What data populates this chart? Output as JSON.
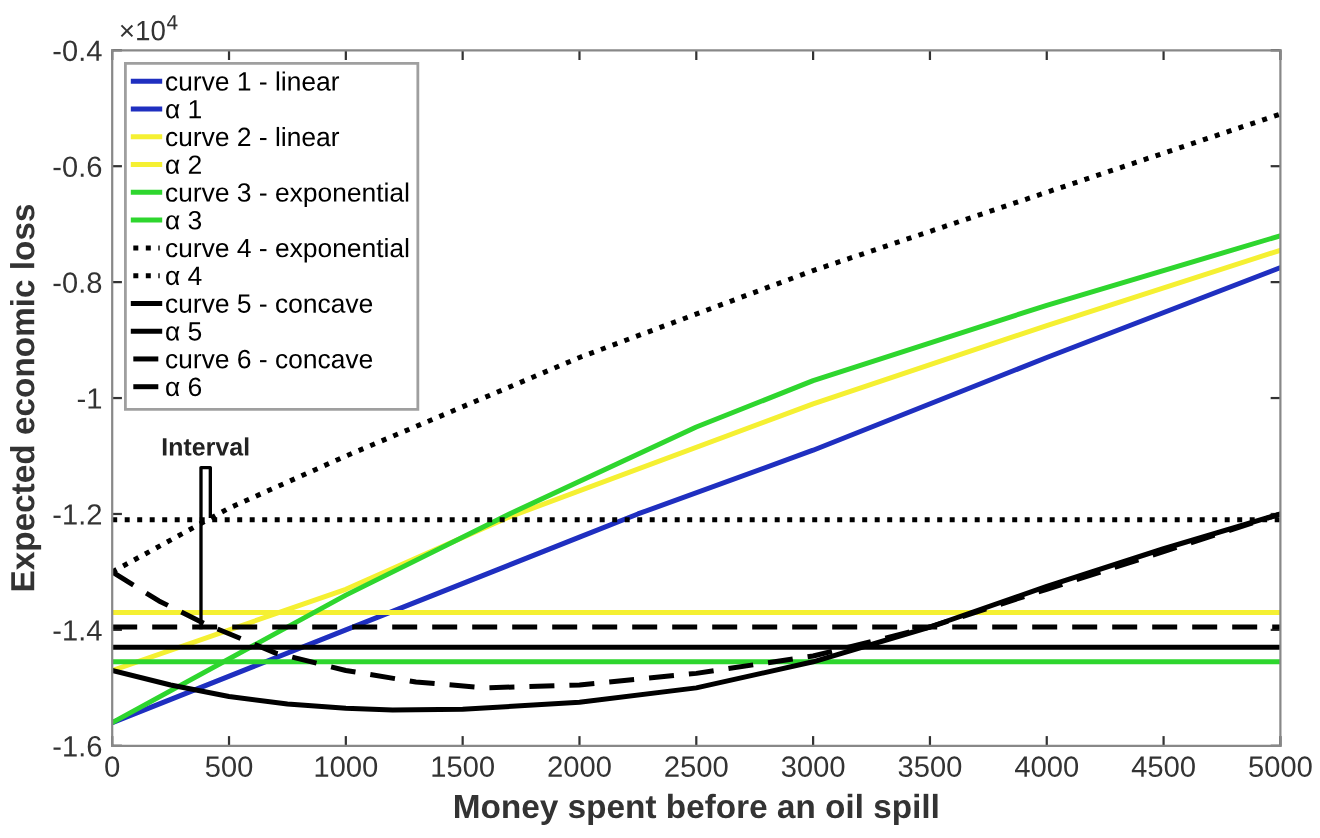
{
  "chart_data": {
    "type": "line",
    "xlabel": "Money spent before an oil spill",
    "ylabel": "Expected economic loss",
    "xlim": [
      0,
      5000
    ],
    "xticks": [
      0,
      500,
      1000,
      1500,
      2000,
      2500,
      3000,
      3500,
      4000,
      4500,
      5000
    ],
    "ylim": [
      -1.6,
      -0.4
    ],
    "yticks": [
      -1.6,
      -1.4,
      -1.2,
      -1,
      -0.8,
      -0.6,
      -0.4
    ],
    "grid": false,
    "legend": "top left",
    "marker": "none",
    "annotations": [
      "×10$^{4}$",
      "Interval"
    ],
    "series": [
      {
        "name": "curve 1 - linear",
        "color": "#1f2fc0",
        "line_style": "solid",
        "x": [
          0,
          1000,
          2000,
          2250,
          3000,
          4000,
          5000
        ],
        "values": [
          -1.56,
          -1.4,
          -1.24,
          -1.2,
          -1.09,
          -0.93,
          -0.775
        ]
      },
      {
        "name": "α 1",
        "color": "#1f2fc0",
        "line_style": "solid"
      },
      {
        "name": "curve 2 - linear",
        "color": "#f5f032",
        "line_style": "solid",
        "x": [
          0,
          1000,
          1700,
          3000,
          4000,
          5000
        ],
        "values": [
          -1.47,
          -1.33,
          -1.205,
          -1.01,
          -0.875,
          -0.745
        ]
      },
      {
        "name": "α 2",
        "color": "#f5f032",
        "line_style": "solid",
        "x": [
          0,
          5000
        ],
        "values": [
          -1.37,
          -1.37
        ]
      },
      {
        "name": "curve 3 - exponential",
        "color": "#2ed62e",
        "line_style": "solid",
        "x": [
          0,
          1000,
          1700,
          2500,
          3000,
          4000,
          5000
        ],
        "values": [
          -1.56,
          -1.34,
          -1.2,
          -1.05,
          -0.97,
          -0.84,
          -0.72
        ]
      },
      {
        "name": "α 3",
        "color": "#2ed62e",
        "line_style": "solid",
        "x": [
          0,
          5000
        ],
        "values": [
          -1.455,
          -1.455
        ]
      },
      {
        "name": "curve 4 - exponential",
        "color": "#000000",
        "line_style": "dotted",
        "x": [
          0,
          500,
          1000,
          2000,
          3000,
          4000,
          5000
        ],
        "values": [
          -1.3,
          -1.19,
          -1.1,
          -0.93,
          -0.78,
          -0.645,
          -0.51
        ]
      },
      {
        "name": "α 4",
        "color": "#000000",
        "line_style": "dotted",
        "x": [
          0,
          5000
        ],
        "values": [
          -1.21,
          -1.21
        ]
      },
      {
        "name": "curve 5 - concave",
        "color": "#000000",
        "line_style": "solid",
        "x": [
          0,
          250,
          500,
          750,
          1000,
          1200,
          1500,
          2000,
          2500,
          3000,
          3500,
          4000,
          4500,
          5000
        ],
        "values": [
          -1.47,
          -1.495,
          -1.515,
          -1.528,
          -1.535,
          -1.538,
          -1.537,
          -1.525,
          -1.5,
          -1.455,
          -1.395,
          -1.325,
          -1.26,
          -1.2
        ]
      },
      {
        "name": "α 5",
        "color": "#000000",
        "line_style": "solid",
        "x": [
          0,
          5000
        ],
        "values": [
          -1.43,
          -1.43
        ]
      },
      {
        "name": "curve 6 - concave",
        "color": "#000000",
        "line_style": "dashed",
        "x": [
          0,
          200,
          400,
          700,
          1000,
          1300,
          1600,
          2000,
          2500,
          3000,
          3500,
          4000,
          4500,
          5000
        ],
        "values": [
          -1.3,
          -1.35,
          -1.39,
          -1.44,
          -1.47,
          -1.49,
          -1.5,
          -1.495,
          -1.475,
          -1.445,
          -1.395,
          -1.33,
          -1.265,
          -1.2
        ]
      },
      {
        "name": "α 6",
        "color": "#000000",
        "line_style": "dashed",
        "x": [
          0,
          5000
        ],
        "values": [
          -1.395,
          -1.395
        ]
      }
    ]
  }
}
